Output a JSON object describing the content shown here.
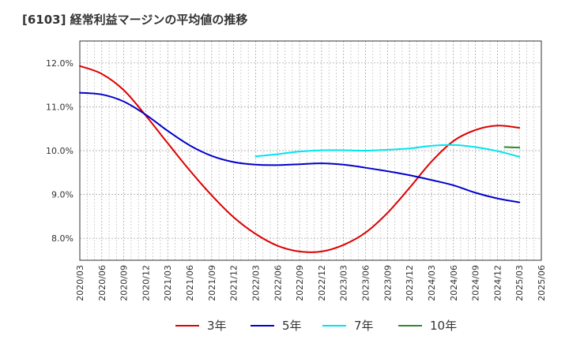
{
  "title": "[6103]  経常利益マージンの平均値の推移",
  "chart_data": {
    "type": "line",
    "title": "[6103]  経常利益マージンの平均値の推移",
    "xlabel": "",
    "ylabel": "",
    "x_tick_labels": [
      "2020/03",
      "2020/06",
      "2020/09",
      "2020/12",
      "2021/03",
      "2021/06",
      "2021/09",
      "2021/12",
      "2022/03",
      "2022/06",
      "2022/09",
      "2022/12",
      "2023/03",
      "2023/06",
      "2023/09",
      "2023/12",
      "2024/03",
      "2024/06",
      "2024/09",
      "2024/12",
      "2025/03",
      "2025/06"
    ],
    "y_ticks": [
      8.0,
      9.0,
      10.0,
      11.0,
      12.0
    ],
    "y_tick_labels": [
      "8.0%",
      "9.0%",
      "10.0%",
      "11.0%",
      "12.0%"
    ],
    "ylim": [
      7.5,
      12.5
    ],
    "grid": true,
    "legend_position": "bottom",
    "series": [
      {
        "name": "3年",
        "color": "#dd0000",
        "points": [
          [
            "2020/03",
            11.93
          ],
          [
            "2020/06",
            11.75
          ],
          [
            "2020/09",
            11.38
          ],
          [
            "2020/12",
            10.8
          ],
          [
            "2021/03",
            10.17
          ],
          [
            "2021/06",
            9.55
          ],
          [
            "2021/09",
            8.98
          ],
          [
            "2021/12",
            8.48
          ],
          [
            "2022/03",
            8.1
          ],
          [
            "2022/06",
            7.83
          ],
          [
            "2022/09",
            7.7
          ],
          [
            "2022/12",
            7.7
          ],
          [
            "2023/03",
            7.85
          ],
          [
            "2023/06",
            8.13
          ],
          [
            "2023/09",
            8.58
          ],
          [
            "2023/12",
            9.15
          ],
          [
            "2024/03",
            9.75
          ],
          [
            "2024/06",
            10.22
          ],
          [
            "2024/09",
            10.47
          ],
          [
            "2024/12",
            10.57
          ],
          [
            "2025/03",
            10.52
          ]
        ]
      },
      {
        "name": "5年",
        "color": "#0000cc",
        "points": [
          [
            "2020/03",
            11.32
          ],
          [
            "2020/06",
            11.28
          ],
          [
            "2020/09",
            11.12
          ],
          [
            "2020/12",
            10.82
          ],
          [
            "2021/03",
            10.45
          ],
          [
            "2021/06",
            10.12
          ],
          [
            "2021/09",
            9.88
          ],
          [
            "2021/12",
            9.74
          ],
          [
            "2022/03",
            9.68
          ],
          [
            "2022/06",
            9.67
          ],
          [
            "2022/09",
            9.69
          ],
          [
            "2022/12",
            9.71
          ],
          [
            "2023/03",
            9.68
          ],
          [
            "2023/06",
            9.61
          ],
          [
            "2023/09",
            9.53
          ],
          [
            "2023/12",
            9.44
          ],
          [
            "2024/03",
            9.33
          ],
          [
            "2024/06",
            9.21
          ],
          [
            "2024/09",
            9.04
          ],
          [
            "2024/12",
            8.91
          ],
          [
            "2025/03",
            8.82
          ]
        ]
      },
      {
        "name": "7年",
        "color": "#00e5ee",
        "points": [
          [
            "2022/03",
            9.87
          ],
          [
            "2022/06",
            9.92
          ],
          [
            "2022/09",
            9.98
          ],
          [
            "2022/12",
            10.01
          ],
          [
            "2023/03",
            10.01
          ],
          [
            "2023/06",
            10.0
          ],
          [
            "2023/09",
            10.02
          ],
          [
            "2023/12",
            10.05
          ],
          [
            "2024/03",
            10.11
          ],
          [
            "2024/06",
            10.13
          ],
          [
            "2024/09",
            10.08
          ],
          [
            "2024/12",
            9.99
          ],
          [
            "2025/03",
            9.86
          ]
        ]
      },
      {
        "name": "10年",
        "color": "#2e8b2e",
        "points": [
          [
            "2025/01",
            10.08
          ],
          [
            "2025/03",
            10.07
          ]
        ]
      }
    ]
  }
}
